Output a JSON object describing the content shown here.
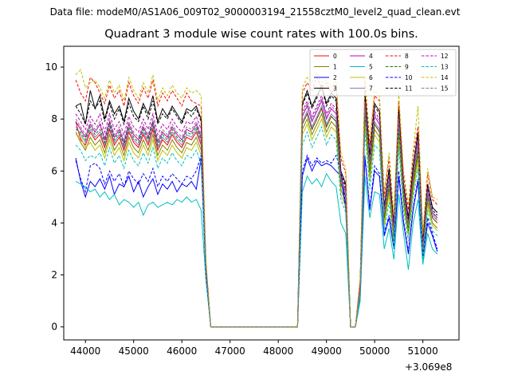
{
  "suptitle": "Data file: modeM0/AS1A06_009T02_9000003194_21558cztM0_level2_quad_clean.evt",
  "chart_data": {
    "type": "line",
    "title": "Quadrant 3 module wise count rates with 100.0s bins.",
    "xlabel": "",
    "ylabel": "",
    "x_offset_label": "+3.069e8",
    "xlim": [
      43550,
      51750
    ],
    "ylim": [
      -0.5,
      10.8
    ],
    "xticks": [
      44000,
      45000,
      46000,
      47000,
      48000,
      49000,
      50000,
      51000
    ],
    "yticks": [
      0,
      2,
      4,
      6,
      8,
      10
    ],
    "grid": false,
    "legend": {
      "placement": "top-right",
      "columns": 4
    },
    "x": [
      43800,
      43900,
      44000,
      44100,
      44200,
      44300,
      44400,
      44500,
      44600,
      44700,
      44800,
      44900,
      45000,
      45100,
      45200,
      45300,
      45400,
      45500,
      45600,
      45700,
      45800,
      45900,
      46000,
      46100,
      46200,
      46300,
      46400,
      46500,
      46600,
      46700,
      48400,
      48500,
      48600,
      48700,
      48800,
      48900,
      49000,
      49100,
      49200,
      49300,
      49400,
      49500,
      49600,
      49700,
      49800,
      49900,
      50000,
      50100,
      50200,
      50300,
      50400,
      50500,
      50600,
      50700,
      50800,
      50900,
      51000,
      51100,
      51200,
      51300
    ],
    "series": [
      {
        "name": "0",
        "color": "#ff0000",
        "dash": false,
        "values": [
          7.9,
          7.2,
          7.0,
          7.5,
          7.2,
          7.4,
          6.9,
          7.6,
          7.0,
          7.3,
          6.8,
          7.5,
          7.1,
          6.9,
          7.4,
          7.0,
          7.6,
          6.8,
          7.2,
          7.0,
          7.4,
          7.1,
          6.9,
          7.3,
          7.2,
          7.5,
          7.0,
          2.2,
          0.0,
          0.0,
          0.0,
          7.8,
          8.2,
          7.6,
          8.0,
          8.4,
          7.7,
          8.1,
          7.9,
          5.5,
          5.0,
          0.0,
          0.0,
          1.5,
          8.2,
          6.0,
          7.8,
          7.5,
          4.2,
          5.5,
          3.5,
          7.6,
          5.0,
          3.8,
          5.6,
          6.8,
          3.0,
          5.0,
          4.2,
          4.0
        ]
      },
      {
        "name": "1",
        "color": "#808000",
        "dash": false,
        "values": [
          7.5,
          7.1,
          6.8,
          7.3,
          7.0,
          7.2,
          6.7,
          7.4,
          6.8,
          7.1,
          6.6,
          7.3,
          6.9,
          6.7,
          7.2,
          6.8,
          7.4,
          6.6,
          7.0,
          6.8,
          7.2,
          6.9,
          6.7,
          7.1,
          7.0,
          7.3,
          6.8,
          2.1,
          0.0,
          0.0,
          0.0,
          7.6,
          8.0,
          7.4,
          7.8,
          8.2,
          7.5,
          7.9,
          7.7,
          5.3,
          4.8,
          0.0,
          0.0,
          1.4,
          8.0,
          5.8,
          7.6,
          7.3,
          4.0,
          5.3,
          3.3,
          7.4,
          4.8,
          3.6,
          5.4,
          6.6,
          2.8,
          4.8,
          4.0,
          3.8
        ]
      },
      {
        "name": "2",
        "color": "#0000ff",
        "dash": false,
        "values": [
          6.5,
          5.6,
          5.0,
          5.6,
          5.4,
          5.7,
          5.3,
          5.8,
          5.1,
          5.5,
          5.4,
          5.8,
          5.2,
          5.6,
          5.0,
          5.4,
          5.7,
          5.1,
          5.5,
          5.3,
          5.6,
          5.2,
          5.5,
          5.4,
          5.6,
          5.3,
          6.5,
          2.0,
          0.0,
          0.0,
          0.0,
          5.8,
          6.5,
          6.0,
          6.4,
          6.2,
          6.3,
          6.2,
          6.0,
          5.8,
          4.5,
          0.0,
          0.0,
          1.2,
          6.5,
          4.5,
          6.0,
          5.8,
          3.5,
          4.2,
          3.0,
          5.8,
          4.0,
          2.8,
          4.5,
          5.6,
          2.6,
          4.0,
          3.5,
          2.9
        ]
      },
      {
        "name": "3",
        "color": "#000000",
        "dash": false,
        "values": [
          8.5,
          8.6,
          7.8,
          9.1,
          8.4,
          8.9,
          8.0,
          8.7,
          8.2,
          8.5,
          7.9,
          8.8,
          8.3,
          8.0,
          8.6,
          8.2,
          8.9,
          7.9,
          8.4,
          8.1,
          8.5,
          8.2,
          7.9,
          8.4,
          8.3,
          8.5,
          8.0,
          2.4,
          0.0,
          0.0,
          0.0,
          8.6,
          9.1,
          8.5,
          8.9,
          9.3,
          8.6,
          9.0,
          8.8,
          6.0,
          5.5,
          0.0,
          0.0,
          1.7,
          9.0,
          6.6,
          8.6,
          8.3,
          4.6,
          6.1,
          3.9,
          8.4,
          5.5,
          4.2,
          6.2,
          7.5,
          3.3,
          5.5,
          4.6,
          4.4
        ]
      },
      {
        "name": "4",
        "color": "#bf00bf",
        "dash": false,
        "values": [
          7.9,
          7.6,
          7.3,
          7.8,
          7.5,
          7.8,
          7.2,
          7.9,
          7.3,
          7.6,
          7.1,
          7.8,
          7.4,
          7.2,
          7.7,
          7.3,
          7.9,
          7.1,
          7.5,
          7.3,
          7.7,
          7.4,
          7.2,
          7.6,
          7.5,
          7.8,
          7.3,
          2.3,
          0.0,
          0.0,
          0.0,
          8.1,
          8.5,
          7.9,
          8.3,
          8.7,
          8.0,
          8.4,
          8.2,
          5.7,
          5.2,
          0.0,
          0.0,
          1.6,
          8.5,
          6.2,
          8.1,
          7.8,
          4.4,
          5.7,
          3.6,
          7.9,
          5.2,
          3.9,
          5.8,
          7.1,
          3.1,
          5.2,
          4.4,
          4.2
        ]
      },
      {
        "name": "5",
        "color": "#00bfbf",
        "dash": false,
        "values": [
          5.6,
          5.5,
          5.4,
          5.2,
          5.3,
          5.0,
          5.2,
          4.9,
          5.1,
          4.7,
          4.9,
          4.8,
          4.6,
          4.8,
          4.3,
          4.7,
          4.8,
          4.6,
          4.7,
          4.8,
          4.7,
          4.9,
          4.8,
          5.0,
          4.8,
          4.9,
          4.5,
          1.8,
          0.0,
          0.0,
          0.0,
          5.2,
          5.8,
          5.5,
          5.7,
          5.4,
          5.9,
          5.6,
          5.4,
          4.0,
          3.6,
          0.0,
          0.0,
          1.0,
          5.8,
          4.2,
          5.2,
          5.1,
          3.0,
          3.8,
          2.6,
          5.1,
          3.6,
          2.2,
          4.0,
          4.9,
          2.4,
          3.6,
          3.0,
          2.8
        ]
      },
      {
        "name": "6",
        "color": "#bfbf00",
        "dash": false,
        "values": [
          7.4,
          7.3,
          6.9,
          7.1,
          6.8,
          7.0,
          6.5,
          7.2,
          6.6,
          6.9,
          6.4,
          7.1,
          6.7,
          6.5,
          7.0,
          6.6,
          7.2,
          6.4,
          6.8,
          6.6,
          7.0,
          6.7,
          6.5,
          6.9,
          6.8,
          7.1,
          6.6,
          2.0,
          0.0,
          0.0,
          0.0,
          7.4,
          7.8,
          7.2,
          7.6,
          8.0,
          7.3,
          7.7,
          7.5,
          5.1,
          4.6,
          0.0,
          0.0,
          1.3,
          7.8,
          5.6,
          7.4,
          7.1,
          3.9,
          5.1,
          3.2,
          7.2,
          4.7,
          3.5,
          5.2,
          6.4,
          2.7,
          4.7,
          3.9,
          3.7
        ]
      },
      {
        "name": "7",
        "color": "#7f7fbf",
        "dash": false,
        "values": [
          7.7,
          7.4,
          7.1,
          7.6,
          7.3,
          7.5,
          7.0,
          7.7,
          7.1,
          7.4,
          6.9,
          7.6,
          7.2,
          7.0,
          7.5,
          7.1,
          7.7,
          6.9,
          7.3,
          7.1,
          7.5,
          7.2,
          7.0,
          7.4,
          7.3,
          7.6,
          7.1,
          2.2,
          0.0,
          0.0,
          0.0,
          7.9,
          8.3,
          7.7,
          8.1,
          8.5,
          7.8,
          8.2,
          8.0,
          5.6,
          5.1,
          0.0,
          0.0,
          1.5,
          8.3,
          6.1,
          7.9,
          7.6,
          4.3,
          5.6,
          3.5,
          7.7,
          5.1,
          3.8,
          5.7,
          6.9,
          3.0,
          5.1,
          4.3,
          4.1
        ]
      },
      {
        "name": "8",
        "color": "#ff0000",
        "dash": true,
        "values": [
          9.5,
          9.0,
          8.7,
          9.6,
          9.4,
          9.0,
          8.6,
          9.3,
          8.8,
          9.1,
          8.5,
          9.4,
          8.9,
          8.6,
          9.2,
          8.8,
          9.5,
          8.5,
          9.0,
          8.7,
          9.1,
          8.8,
          8.5,
          9.0,
          8.7,
          8.6,
          8.5,
          2.5,
          0.0,
          0.0,
          0.0,
          9.0,
          9.4,
          9.1,
          9.6,
          9.2,
          9.4,
          9.0,
          9.3,
          6.5,
          5.9,
          0.0,
          0.0,
          1.8,
          9.4,
          7.0,
          8.9,
          8.7,
          5.0,
          6.5,
          4.1,
          8.7,
          5.8,
          4.5,
          6.6,
          7.7,
          3.5,
          5.9,
          4.9,
          4.7
        ]
      },
      {
        "name": "9",
        "color": "#007f00",
        "dash": true,
        "values": [
          7.6,
          7.5,
          7.2,
          7.7,
          7.4,
          7.6,
          7.1,
          7.8,
          7.2,
          7.5,
          7.0,
          7.7,
          7.3,
          7.1,
          7.6,
          7.2,
          7.8,
          7.0,
          7.4,
          7.2,
          7.6,
          7.3,
          7.1,
          7.5,
          7.4,
          7.7,
          7.2,
          2.2,
          0.0,
          0.0,
          0.0,
          7.8,
          8.2,
          7.6,
          8.0,
          8.4,
          7.7,
          8.1,
          7.9,
          5.5,
          5.0,
          0.0,
          0.0,
          1.4,
          8.2,
          6.0,
          7.8,
          7.5,
          4.2,
          5.5,
          3.4,
          7.6,
          5.0,
          3.7,
          5.6,
          6.8,
          2.9,
          5.0,
          4.2,
          4.0
        ]
      },
      {
        "name": "10",
        "color": "#0000ff",
        "dash": true,
        "values": [
          6.4,
          5.7,
          5.2,
          6.2,
          6.3,
          6.1,
          5.5,
          6.0,
          5.6,
          5.9,
          5.4,
          6.0,
          5.7,
          5.5,
          5.9,
          5.6,
          6.1,
          5.4,
          5.8,
          5.6,
          5.9,
          5.7,
          5.5,
          5.8,
          5.7,
          6.0,
          6.6,
          2.0,
          0.0,
          0.0,
          0.0,
          6.0,
          6.6,
          6.2,
          6.5,
          6.3,
          6.4,
          6.3,
          6.6,
          6.0,
          4.7,
          0.0,
          0.0,
          1.2,
          6.6,
          4.6,
          6.2,
          5.9,
          3.6,
          4.3,
          3.1,
          6.0,
          4.1,
          2.9,
          4.6,
          5.7,
          2.7,
          4.2,
          3.6,
          3.0
        ]
      },
      {
        "name": "11",
        "color": "#000000",
        "dash": true,
        "values": [
          8.5,
          8.2,
          7.8,
          8.7,
          8.4,
          8.7,
          7.9,
          8.6,
          8.0,
          8.4,
          7.8,
          8.6,
          8.1,
          7.9,
          8.5,
          8.0,
          8.7,
          7.8,
          8.2,
          8.0,
          8.4,
          8.1,
          7.8,
          8.3,
          8.1,
          8.4,
          7.9,
          2.4,
          0.0,
          0.0,
          0.0,
          8.5,
          9.0,
          8.4,
          8.8,
          9.2,
          8.5,
          8.9,
          8.7,
          5.9,
          5.4,
          0.0,
          0.0,
          1.7,
          8.9,
          6.5,
          8.5,
          8.2,
          4.6,
          6.0,
          3.8,
          8.3,
          5.4,
          4.1,
          6.1,
          7.4,
          3.2,
          5.4,
          4.5,
          4.3
        ]
      },
      {
        "name": "12",
        "color": "#bf00bf",
        "dash": true,
        "values": [
          8.2,
          7.9,
          7.6,
          8.1,
          7.8,
          8.2,
          7.5,
          8.2,
          7.6,
          7.9,
          7.4,
          8.1,
          7.7,
          7.5,
          8.0,
          7.6,
          8.2,
          7.4,
          7.8,
          7.6,
          8.0,
          7.7,
          7.5,
          7.9,
          7.8,
          8.1,
          7.6,
          2.3,
          0.0,
          0.0,
          0.0,
          8.3,
          8.7,
          8.1,
          8.5,
          8.9,
          8.2,
          8.6,
          8.4,
          5.8,
          5.3,
          0.0,
          0.0,
          1.6,
          8.7,
          6.3,
          8.3,
          8.0,
          4.5,
          5.8,
          3.7,
          8.1,
          5.3,
          4.0,
          5.9,
          7.2,
          3.1,
          5.3,
          4.4,
          4.2
        ]
      },
      {
        "name": "13",
        "color": "#00bfbf",
        "dash": true,
        "values": [
          7.0,
          6.8,
          6.4,
          6.6,
          6.5,
          6.7,
          6.2,
          6.9,
          6.3,
          6.6,
          6.1,
          6.8,
          6.4,
          6.2,
          6.7,
          6.3,
          6.9,
          6.1,
          6.5,
          6.3,
          6.7,
          6.4,
          6.2,
          6.6,
          6.5,
          6.8,
          6.3,
          1.9,
          0.0,
          0.0,
          0.0,
          7.0,
          7.5,
          6.9,
          7.3,
          7.7,
          7.0,
          7.4,
          7.2,
          4.9,
          4.4,
          0.0,
          0.0,
          1.2,
          7.5,
          5.3,
          7.0,
          6.8,
          3.7,
          4.8,
          3.0,
          6.9,
          4.5,
          3.3,
          5.0,
          6.1,
          2.6,
          4.5,
          3.7,
          3.5
        ]
      },
      {
        "name": "14",
        "color": "#bfbf00",
        "dash": true,
        "values": [
          9.7,
          9.9,
          9.2,
          9.4,
          9.5,
          9.2,
          8.8,
          9.5,
          9.0,
          9.3,
          8.7,
          9.6,
          9.1,
          8.8,
          9.4,
          9.0,
          9.7,
          8.7,
          9.2,
          8.9,
          9.3,
          9.0,
          8.8,
          9.2,
          9.0,
          9.1,
          8.9,
          2.6,
          0.0,
          0.0,
          0.0,
          9.2,
          9.6,
          9.4,
          9.8,
          9.4,
          9.5,
          9.2,
          9.5,
          6.7,
          6.1,
          0.0,
          0.0,
          1.9,
          9.6,
          7.2,
          9.1,
          8.9,
          5.2,
          6.7,
          4.3,
          9.0,
          6.0,
          4.7,
          6.8,
          8.5,
          3.6,
          6.1,
          5.0,
          4.9
        ]
      },
      {
        "name": "15",
        "color": "#7f7f7f",
        "dash": true,
        "values": [
          8.0,
          7.7,
          7.4,
          7.9,
          7.6,
          7.9,
          7.3,
          8.0,
          7.4,
          7.7,
          7.2,
          7.9,
          7.5,
          7.3,
          7.8,
          7.4,
          8.0,
          7.2,
          7.6,
          7.4,
          7.8,
          7.5,
          7.3,
          7.7,
          7.6,
          7.9,
          7.4,
          2.3,
          0.0,
          0.0,
          0.0,
          8.2,
          8.6,
          8.0,
          8.4,
          8.8,
          8.1,
          8.5,
          8.3,
          5.7,
          5.2,
          0.0,
          0.0,
          1.5,
          8.6,
          6.2,
          8.2,
          7.9,
          4.4,
          5.7,
          3.6,
          8.0,
          5.2,
          3.9,
          5.8,
          7.0,
          3.0,
          5.2,
          4.4,
          4.1
        ]
      }
    ]
  }
}
